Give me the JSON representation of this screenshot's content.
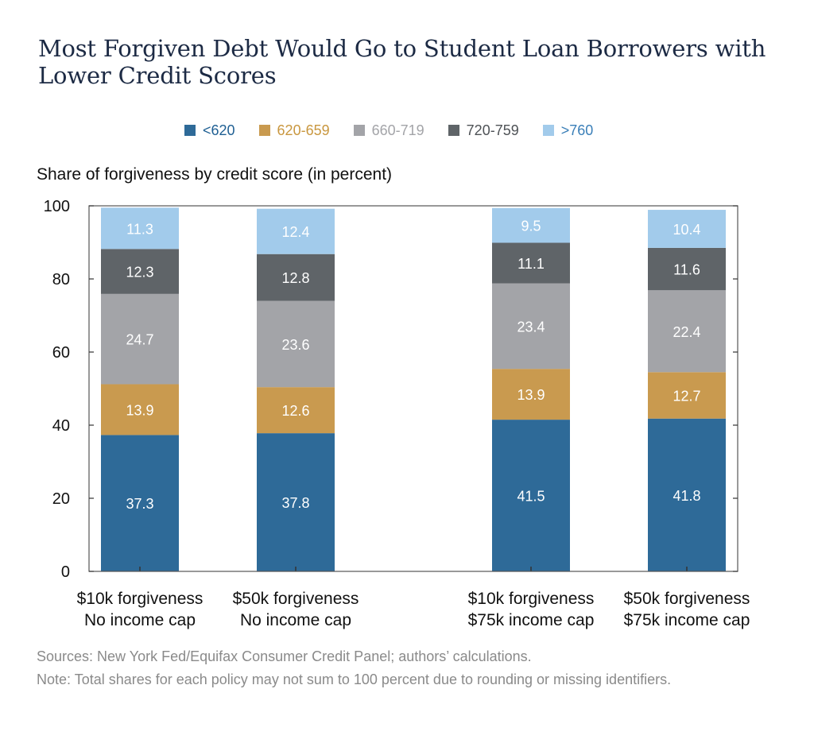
{
  "title": "Most Forgiven Debt Would Go to Student Loan Borrowers with Lower Credit Scores",
  "subtitle": "Share of forgiveness by credit score (in percent)",
  "sources": "Sources: New York Fed/Equifax Consumer Credit Panel; authors’ calculations.",
  "note": "Note: Total shares for each policy may not sum to 100 percent due to rounding or missing identifiers.",
  "chart_data": {
    "type": "bar",
    "stacked": true,
    "categories": [
      [
        "$10k forgiveness",
        "No income cap"
      ],
      [
        "$50k forgiveness",
        "No income cap"
      ],
      [
        "$10k forgiveness",
        "$75k income cap"
      ],
      [
        "$50k forgiveness",
        "$75k income cap"
      ]
    ],
    "series": [
      {
        "name": "<620",
        "color": "#2e6a98",
        "label_color": "#1f5f93",
        "values": [
          37.3,
          37.8,
          41.5,
          41.8
        ]
      },
      {
        "name": "620-659",
        "color": "#c99a4f",
        "label_color": "#c9973f",
        "values": [
          13.9,
          12.6,
          13.9,
          12.7
        ]
      },
      {
        "name": "660-719",
        "color": "#a3a4a8",
        "label_color": "#a3a4a8",
        "values": [
          24.7,
          23.6,
          23.4,
          22.4
        ]
      },
      {
        "name": "720-759",
        "color": "#5f6468",
        "label_color": "#4e5256",
        "values": [
          12.3,
          12.8,
          11.1,
          11.6
        ]
      },
      {
        "name": ">760",
        "color": "#a2cbeb",
        "label_color": "#3a7fb8",
        "values": [
          11.3,
          12.4,
          9.5,
          10.4
        ]
      }
    ],
    "ylim": [
      0,
      100
    ],
    "yticks": [
      0,
      20,
      40,
      60,
      80,
      100
    ],
    "legend_position": "top",
    "grid": false
  }
}
